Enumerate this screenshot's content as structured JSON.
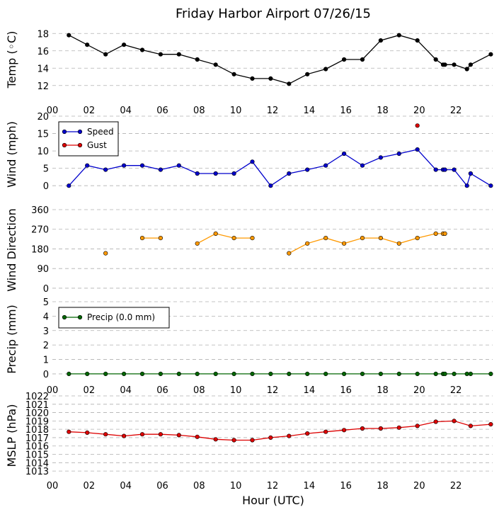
{
  "figure": {
    "title": "Friday Harbor Airport 07/26/15",
    "xlabel": "Hour (UTC)"
  },
  "chart_data": [
    {
      "type": "line",
      "ylabel": "Temp (◦C)",
      "ylim": [
        11,
        19
      ],
      "yticks": [
        "12",
        "14",
        "16",
        "18"
      ],
      "xlim": [
        0,
        24
      ],
      "xtick_labels": [
        "00",
        "02",
        "04",
        "06",
        "08",
        "10",
        "12",
        "14",
        "16",
        "18",
        "20",
        "22"
      ],
      "grid": true,
      "series": [
        {
          "color": "#000000",
          "x": [
            0.9,
            1.9,
            2.9,
            3.9,
            4.9,
            5.9,
            6.9,
            7.9,
            8.9,
            9.9,
            10.9,
            11.9,
            12.9,
            13.9,
            14.9,
            15.9,
            16.9,
            17.9,
            18.9,
            19.9,
            20.9,
            21.3,
            21.4,
            21.9,
            22.6,
            22.8,
            23.9
          ],
          "y": [
            17.8,
            16.7,
            15.6,
            16.7,
            16.1,
            15.6,
            15.6,
            15.0,
            14.4,
            13.3,
            12.8,
            12.8,
            12.2,
            13.3,
            13.9,
            15.0,
            15.0,
            17.2,
            17.8,
            17.2,
            15.0,
            14.4,
            14.4,
            14.4,
            13.9,
            14.4,
            15.6
          ]
        }
      ]
    },
    {
      "type": "line",
      "ylabel": "Wind (mph)",
      "ylim": [
        -2,
        20
      ],
      "yticks": [
        "0",
        "5",
        "10",
        "15",
        "20"
      ],
      "xlim": [
        0,
        24
      ],
      "grid": true,
      "legend": "top-left",
      "series": [
        {
          "name": "Speed",
          "color": "#0000cc",
          "x": [
            0.9,
            1.9,
            2.9,
            3.9,
            4.9,
            5.9,
            6.9,
            7.9,
            8.9,
            9.9,
            10.9,
            11.9,
            12.9,
            13.9,
            14.9,
            15.9,
            16.9,
            17.9,
            18.9,
            19.9,
            20.9,
            21.3,
            21.4,
            21.9,
            22.6,
            22.8,
            23.9
          ],
          "y": [
            0,
            5.8,
            4.6,
            5.8,
            5.8,
            4.6,
            5.8,
            3.5,
            3.5,
            3.5,
            6.9,
            0,
            3.5,
            4.6,
            5.8,
            9.2,
            5.8,
            8.1,
            9.2,
            10.4,
            4.6,
            4.6,
            4.6,
            4.6,
            0,
            3.5,
            0
          ]
        },
        {
          "name": "Gust",
          "color": "#dd0000",
          "x": [
            19.9
          ],
          "y": [
            17.3
          ],
          "connect": false
        }
      ]
    },
    {
      "type": "scatter",
      "ylabel": "Wind Direction",
      "ylim": [
        -10,
        360
      ],
      "yticks": [
        "0",
        "90",
        "180",
        "270",
        "360"
      ],
      "xlim": [
        0,
        24
      ],
      "grid": true,
      "series": [
        {
          "color": "#ff9900",
          "x": [
            2.9,
            4.9,
            5.9,
            7.9,
            8.9,
            9.9,
            10.9,
            12.9,
            13.9,
            14.9,
            15.9,
            16.9,
            17.9,
            18.9,
            19.9,
            20.9,
            21.3,
            21.4
          ],
          "y": [
            160,
            230,
            230,
            205,
            250,
            230,
            230,
            160,
            205,
            230,
            205,
            230,
            230,
            205,
            230,
            250,
            250,
            250
          ],
          "segments": [
            [
              0,
              0
            ],
            [
              1,
              2
            ],
            [
              3,
              6
            ],
            [
              7,
              17
            ]
          ]
        }
      ]
    },
    {
      "type": "line",
      "ylabel": "Precip (mm)",
      "ylim": [
        -0.2,
        5
      ],
      "yticks": [
        "0",
        "1",
        "2",
        "3",
        "4",
        "5"
      ],
      "xlim": [
        0,
        24
      ],
      "xtick_labels": [
        "00",
        "02",
        "04",
        "06",
        "08",
        "10",
        "12",
        "14",
        "16",
        "18",
        "20",
        "22"
      ],
      "grid": true,
      "legend": "top-left",
      "series": [
        {
          "name": "Precip (0.0 mm)",
          "color": "#006600",
          "x": [
            0.9,
            1.9,
            2.9,
            3.9,
            4.9,
            5.9,
            6.9,
            7.9,
            8.9,
            9.9,
            10.9,
            11.9,
            12.9,
            13.9,
            14.9,
            15.9,
            16.9,
            17.9,
            18.9,
            19.9,
            20.9,
            21.3,
            21.4,
            21.9,
            22.6,
            22.8,
            23.9
          ],
          "y": [
            0,
            0,
            0,
            0,
            0,
            0,
            0,
            0,
            0,
            0,
            0,
            0,
            0,
            0,
            0,
            0,
            0,
            0,
            0,
            0,
            0,
            0,
            0,
            0,
            0,
            0,
            0
          ]
        }
      ]
    },
    {
      "type": "line",
      "ylabel": "MSLP (hPa)",
      "ylim": [
        1012.5,
        1022
      ],
      "yticks": [
        "1013",
        "1014",
        "1015",
        "1016",
        "1017",
        "1018",
        "1019",
        "1020",
        "1021",
        "1022"
      ],
      "xlim": [
        0,
        24
      ],
      "xtick_labels": [
        "00",
        "02",
        "04",
        "06",
        "08",
        "10",
        "12",
        "14",
        "16",
        "18",
        "20",
        "22"
      ],
      "grid": true,
      "series": [
        {
          "color": "#dd0000",
          "x": [
            0.9,
            1.9,
            2.9,
            3.9,
            4.9,
            5.9,
            6.9,
            7.9,
            8.9,
            9.9,
            10.9,
            11.9,
            12.9,
            13.9,
            14.9,
            15.9,
            16.9,
            17.9,
            18.9,
            19.9,
            20.9,
            21.9,
            22.8,
            23.9
          ],
          "y": [
            1017.7,
            1017.6,
            1017.4,
            1017.2,
            1017.4,
            1017.4,
            1017.3,
            1017.1,
            1016.8,
            1016.7,
            1016.7,
            1017.0,
            1017.2,
            1017.5,
            1017.7,
            1017.9,
            1018.1,
            1018.1,
            1018.2,
            1018.4,
            1018.9,
            1019.0,
            1018.4,
            1018.6
          ]
        }
      ]
    }
  ]
}
